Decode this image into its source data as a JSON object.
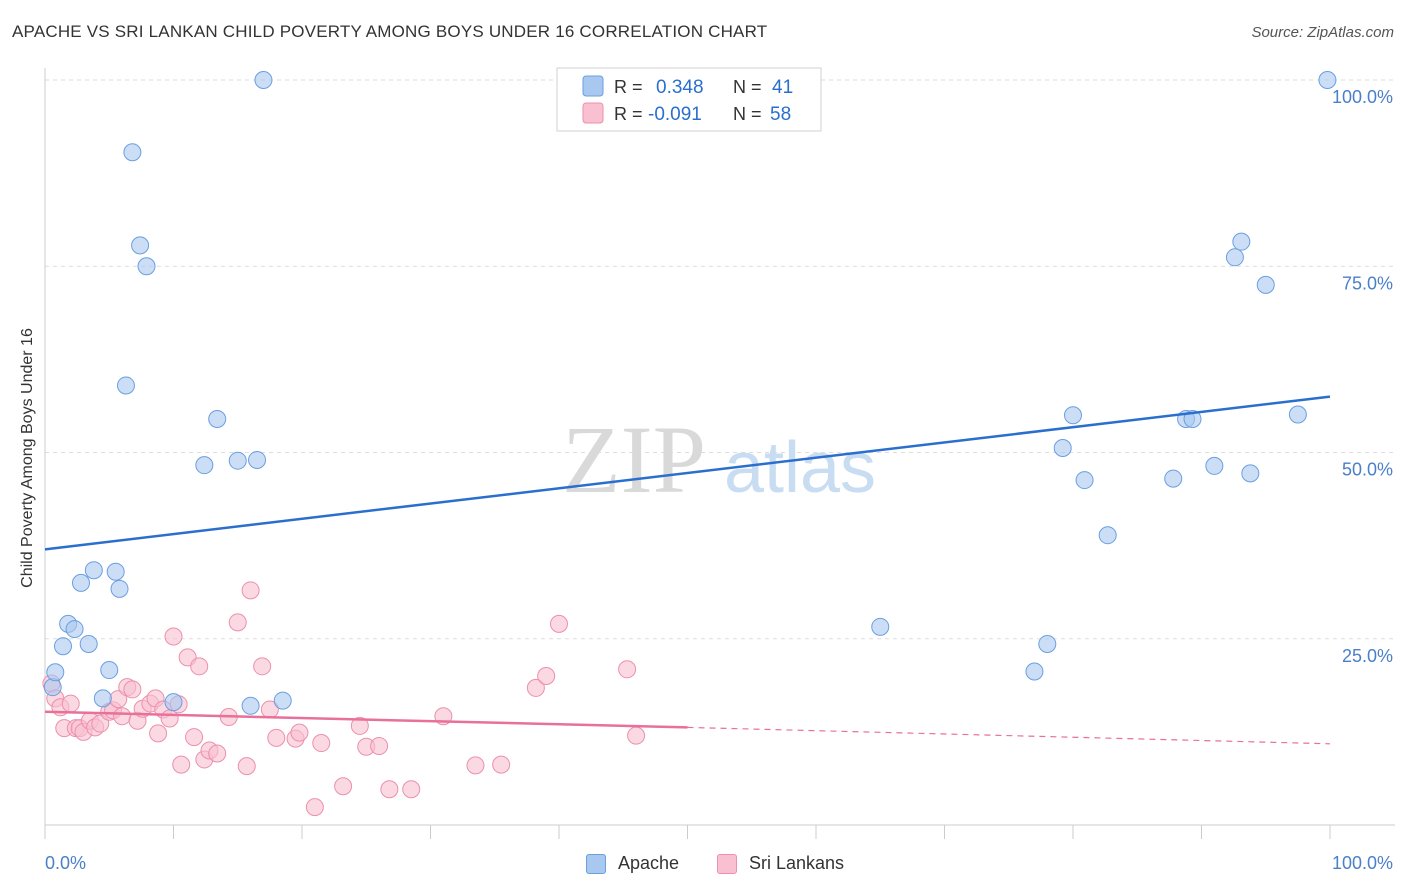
{
  "title": "APACHE VS SRI LANKAN CHILD POVERTY AMONG BOYS UNDER 16 CORRELATION CHART",
  "source": "Source: ZipAtlas.com",
  "watermark": {
    "zip": "ZIP",
    "atlas": "atlas"
  },
  "colors": {
    "apache_fill": "#a8c8f0",
    "apache_stroke": "#6a9fe0",
    "apache_line": "#2a6fce",
    "srilankan_fill": "#f8c0d0",
    "srilankan_stroke": "#ec90ac",
    "srilankan_line": "#e8709a",
    "axis_text": "#4a7fc9",
    "grid": "#dddddd"
  },
  "stats_legend": [
    {
      "r_label": "R =",
      "r_value": "0.348",
      "n_label": "N =",
      "n_value": "41"
    },
    {
      "r_label": "R =",
      "r_value": "-0.091",
      "n_label": "N =",
      "n_value": "58"
    }
  ],
  "bottom_legend": [
    "Apache",
    "Sri Lankans"
  ],
  "chart_data": {
    "type": "scatter",
    "title": "APACHE VS SRI LANKAN CHILD POVERTY AMONG BOYS UNDER 16 CORRELATION CHART",
    "xlabel": "",
    "ylabel": "Child Poverty Among Boys Under 16",
    "xlim": [
      0,
      100
    ],
    "ylim": [
      0,
      100
    ],
    "x_tick_labels": [
      "0.0%",
      "100.0%"
    ],
    "y_tick_labels": [
      "25.0%",
      "50.0%",
      "75.0%",
      "100.0%"
    ],
    "y_ticks": [
      25,
      50,
      75,
      100
    ],
    "grid": true,
    "legend_position": "top-center",
    "series": [
      {
        "name": "Apache",
        "points": [
          [
            0.6,
            18.5
          ],
          [
            0.8,
            20.5
          ],
          [
            1.4,
            24
          ],
          [
            1.8,
            27
          ],
          [
            2.3,
            26.3
          ],
          [
            2.8,
            32.5
          ],
          [
            3.4,
            24.3
          ],
          [
            3.8,
            34.2
          ],
          [
            4.5,
            17
          ],
          [
            5,
            20.8
          ],
          [
            5.5,
            34
          ],
          [
            5.8,
            31.7
          ],
          [
            6.3,
            59
          ],
          [
            6.8,
            90.3
          ],
          [
            7.4,
            77.8
          ],
          [
            7.9,
            75
          ],
          [
            10,
            16.5
          ],
          [
            12.4,
            48.3
          ],
          [
            13.4,
            54.5
          ],
          [
            15,
            48.9
          ],
          [
            16,
            16
          ],
          [
            16.5,
            49
          ],
          [
            17,
            100
          ],
          [
            18.5,
            16.7
          ],
          [
            65,
            26.6
          ],
          [
            77,
            20.6
          ],
          [
            78,
            24.3
          ],
          [
            79.2,
            50.6
          ],
          [
            80,
            55
          ],
          [
            80.9,
            46.3
          ],
          [
            82.7,
            38.9
          ],
          [
            87.8,
            46.5
          ],
          [
            88.8,
            54.5
          ],
          [
            89.3,
            54.5
          ],
          [
            91,
            48.2
          ],
          [
            92.6,
            76.2
          ],
          [
            93.1,
            78.3
          ],
          [
            93.8,
            47.2
          ],
          [
            95,
            72.5
          ],
          [
            97.5,
            55.1
          ],
          [
            99.8,
            100
          ]
        ]
      },
      {
        "name": "Sri Lankans",
        "points": [
          [
            0.5,
            19
          ],
          [
            0.8,
            17
          ],
          [
            1.2,
            15.8
          ],
          [
            1.5,
            13
          ],
          [
            2,
            16.3
          ],
          [
            2.4,
            13
          ],
          [
            2.7,
            13
          ],
          [
            3,
            12.5
          ],
          [
            3.5,
            14
          ],
          [
            3.9,
            13.1
          ],
          [
            4.3,
            13.6
          ],
          [
            5,
            15.2
          ],
          [
            5.3,
            15.4
          ],
          [
            5.7,
            16.9
          ],
          [
            6,
            14.6
          ],
          [
            6.4,
            18.5
          ],
          [
            6.8,
            18.2
          ],
          [
            7.2,
            14
          ],
          [
            7.6,
            15.6
          ],
          [
            8.2,
            16.3
          ],
          [
            8.6,
            17
          ],
          [
            8.8,
            12.3
          ],
          [
            9.2,
            15.5
          ],
          [
            9.7,
            14.3
          ],
          [
            10,
            25.3
          ],
          [
            10.4,
            16.2
          ],
          [
            10.6,
            8.1
          ],
          [
            11.1,
            22.5
          ],
          [
            11.6,
            11.8
          ],
          [
            12,
            21.3
          ],
          [
            12.4,
            8.8
          ],
          [
            12.8,
            10
          ],
          [
            13.4,
            9.6
          ],
          [
            14.3,
            14.5
          ],
          [
            15,
            27.2
          ],
          [
            15.7,
            7.9
          ],
          [
            16,
            31.5
          ],
          [
            16.9,
            21.3
          ],
          [
            17.5,
            15.5
          ],
          [
            18,
            11.7
          ],
          [
            19.5,
            11.6
          ],
          [
            19.8,
            12.4
          ],
          [
            21,
            2.4
          ],
          [
            21.5,
            11
          ],
          [
            23.2,
            5.2
          ],
          [
            24.5,
            13.3
          ],
          [
            25,
            10.5
          ],
          [
            26,
            10.6
          ],
          [
            26.8,
            4.8
          ],
          [
            28.5,
            4.8
          ],
          [
            31,
            14.6
          ],
          [
            33.5,
            8
          ],
          [
            35.5,
            8.1
          ],
          [
            38.2,
            18.4
          ],
          [
            39,
            20
          ],
          [
            40,
            27
          ],
          [
            45.3,
            20.9
          ],
          [
            46,
            12
          ]
        ]
      }
    ],
    "trend_lines": [
      {
        "series": "Apache",
        "x": [
          0,
          100
        ],
        "y": [
          37,
          57.5
        ]
      },
      {
        "series": "Sri Lankans",
        "x": [
          0,
          50,
          100
        ],
        "y": [
          15.2,
          13.1,
          10.9
        ],
        "dashed_after": 50
      }
    ]
  }
}
